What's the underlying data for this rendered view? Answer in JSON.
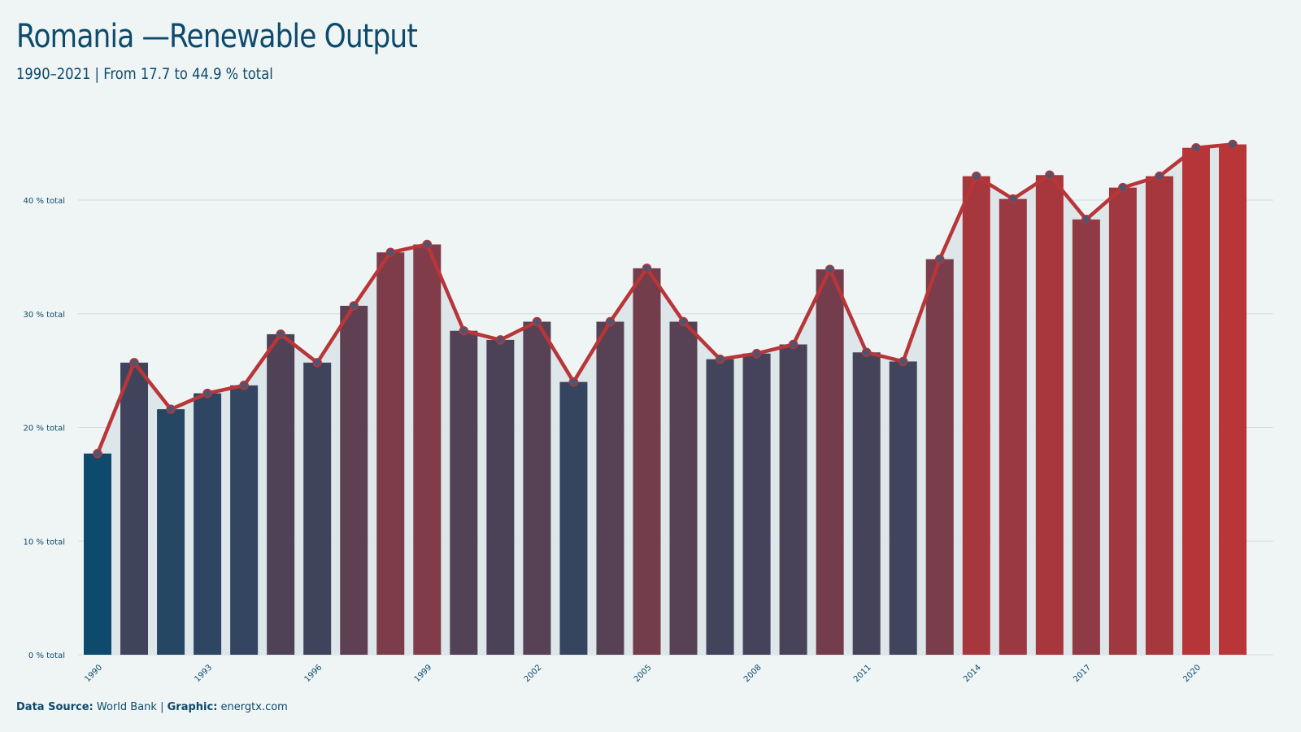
{
  "title": "Romania —Renewable Output",
  "subtitle": "1990–2021 | From 17.7 to 44.9 % total",
  "footer": {
    "source_label": "Data Source:",
    "source_value": "World Bank",
    "separator": "|",
    "graphic_label": "Graphic:",
    "graphic_value": "energtx.com"
  },
  "colors": {
    "background": "#eff5f5",
    "low": "#0d4a6b",
    "high": "#b83538",
    "line": "#b83538",
    "marker": "#4d5570",
    "area": "#dae5e9",
    "grid": "#d2dcdf",
    "text": "#0d4a6b"
  },
  "chart_data": {
    "type": "bar",
    "x": [
      1990,
      1991,
      1992,
      1993,
      1994,
      1995,
      1996,
      1997,
      1998,
      1999,
      2000,
      2001,
      2002,
      2003,
      2004,
      2005,
      2006,
      2007,
      2008,
      2009,
      2010,
      2011,
      2012,
      2013,
      2014,
      2015,
      2016,
      2017,
      2018,
      2019,
      2020,
      2021
    ],
    "values": [
      17.7,
      25.7,
      21.6,
      23.0,
      23.7,
      28.2,
      25.7,
      30.7,
      35.4,
      36.1,
      28.5,
      27.7,
      29.3,
      24.0,
      29.3,
      34.0,
      29.3,
      26.0,
      26.5,
      27.3,
      33.9,
      26.6,
      25.8,
      34.8,
      42.1,
      40.1,
      42.2,
      38.3,
      41.1,
      42.1,
      44.6,
      44.9
    ],
    "overlay": "line-with-markers",
    "ylim": [
      0,
      46
    ],
    "yticks": [
      0,
      10,
      20,
      30,
      40
    ],
    "ytick_suffix": " % total",
    "xtick_labels": [
      1990,
      1993,
      1996,
      1999,
      2002,
      2005,
      2008,
      2011,
      2014,
      2017,
      2020
    ],
    "grid": "horizontal",
    "xlabel": "",
    "ylabel": ""
  }
}
